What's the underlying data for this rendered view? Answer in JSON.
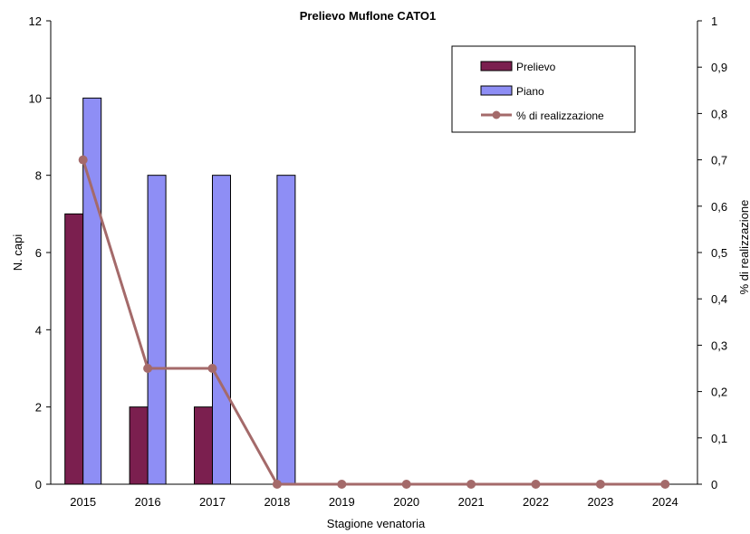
{
  "chart_data": {
    "type": "bar",
    "title": "Prelievo Muflone CATO1",
    "xlabel": "Stagione venatoria",
    "ylabel": "N. capi",
    "y2label": "% di realizzazione",
    "categories": [
      "2015",
      "2016",
      "2017",
      "2018",
      "2019",
      "2020",
      "2021",
      "2022",
      "2023",
      "2024"
    ],
    "series": [
      {
        "name": "Prelievo",
        "kind": "bar",
        "axis": "left",
        "color": "#7B1F4F",
        "values": [
          7,
          2,
          2,
          0,
          0,
          0,
          0,
          0,
          0,
          0
        ]
      },
      {
        "name": "Piano",
        "kind": "bar",
        "axis": "left",
        "color": "#8E8EF5",
        "values": [
          10,
          8,
          8,
          8,
          0,
          0,
          0,
          0,
          0,
          0
        ]
      },
      {
        "name": "% di realizzazione",
        "kind": "line",
        "axis": "right",
        "color": "#A46A6A",
        "values": [
          0.7,
          0.25,
          0.25,
          0,
          0,
          0,
          0,
          0,
          0,
          0
        ]
      }
    ],
    "ylim": [
      0,
      12
    ],
    "y2lim": [
      0,
      1
    ],
    "yticks": [
      "0",
      "2",
      "4",
      "6",
      "8",
      "10",
      "12"
    ],
    "y2ticks": [
      "0",
      "0,1",
      "0,2",
      "0,3",
      "0,4",
      "0,5",
      "0,6",
      "0,7",
      "0,8",
      "0,9",
      "1"
    ],
    "grid": false,
    "legend_position": "top-right"
  }
}
